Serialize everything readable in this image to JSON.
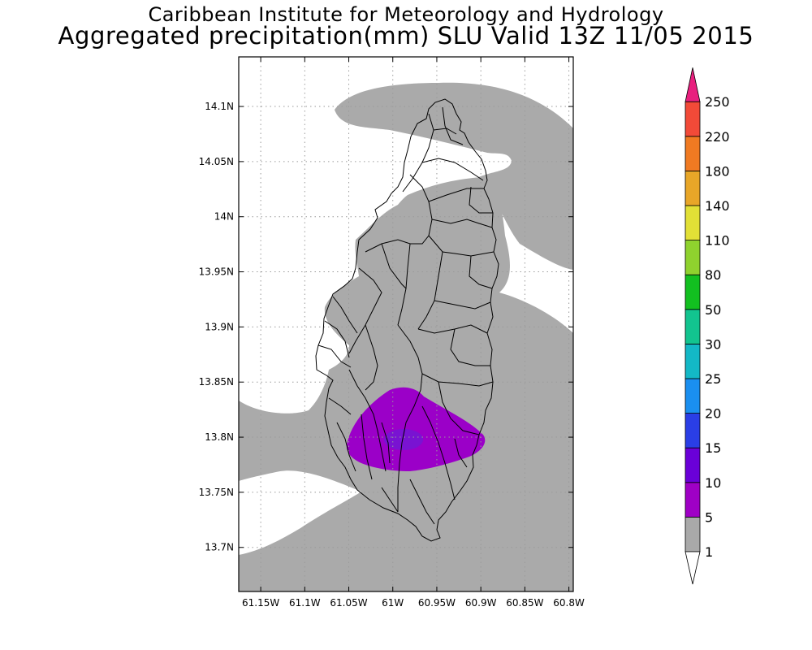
{
  "title": {
    "line1": "Caribbean Institute for Meteorology and Hydrology",
    "line2": "Aggregated precipitation(mm) SLU Valid 13Z 11/05 2015"
  },
  "map": {
    "lat_range": [
      13.66,
      14.145
    ],
    "lon_range": [
      -61.175,
      -60.795
    ],
    "lat_ticks": [
      "14.1N",
      "14.05N",
      "14N",
      "13.95N",
      "13.9N",
      "13.85N",
      "13.8N",
      "13.75N",
      "13.7N"
    ],
    "lat_tick_values": [
      14.1,
      14.05,
      14.0,
      13.95,
      13.9,
      13.85,
      13.8,
      13.75,
      13.7
    ],
    "lon_ticks": [
      "61.15W",
      "61.1W",
      "61.05W",
      "61W",
      "60.95W",
      "60.9W",
      "60.85W",
      "60.8W"
    ],
    "lon_tick_values": [
      -61.15,
      -61.1,
      -61.05,
      -61.0,
      -60.95,
      -60.9,
      -60.85,
      -60.8
    ],
    "grid": true,
    "region": "Saint Lucia",
    "max_precip_class": "10-15 mm",
    "colors": {
      "frame": "#000000",
      "grid": "#9a9a9a",
      "precip_1_5": "#aaaaaa",
      "precip_5_10": "#9b00c8",
      "precip_10_15": "#6e1ad6"
    }
  },
  "colorbar": {
    "labels": [
      "1",
      "5",
      "10",
      "15",
      "20",
      "25",
      "30",
      "50",
      "80",
      "110",
      "140",
      "180",
      "220",
      "250"
    ],
    "colors": [
      "#ffffff",
      "#a9a9a9",
      "#9f00c5",
      "#6a00d8",
      "#2a3ee6",
      "#1a8ff0",
      "#13b8c6",
      "#12c48f",
      "#12c020",
      "#8fd22e",
      "#e2e036",
      "#e8a628",
      "#f07a22",
      "#f24a38",
      "#e8207e"
    ]
  }
}
